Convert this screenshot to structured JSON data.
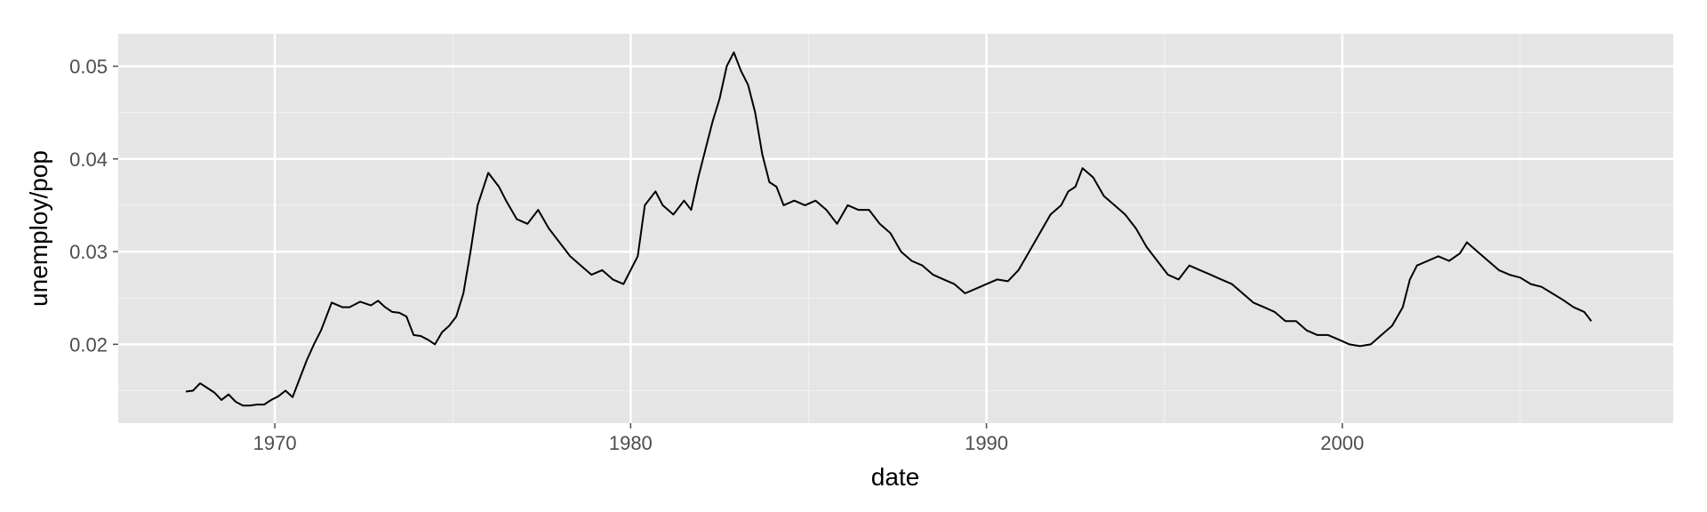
{
  "chart_data": {
    "type": "line",
    "title": "",
    "xlabel": "date",
    "ylabel": "unemploy/pop",
    "xlim": [
      1965.6,
      2009.3
    ],
    "ylim": [
      0.0115,
      0.0535
    ],
    "x_ticks": [
      1970,
      1980,
      1990,
      2000
    ],
    "x_tick_labels": [
      "1970",
      "1980",
      "1990",
      "2000"
    ],
    "y_ticks": [
      0.02,
      0.03,
      0.04,
      0.05
    ],
    "y_tick_labels": [
      "0.02",
      "0.03",
      "0.04",
      "0.05"
    ],
    "grid": true,
    "legend": "none",
    "colors": {
      "panel": "#e5e5e5",
      "grid_major": "#ffffff",
      "grid_minor": "#f2f2f2",
      "line": "#000000",
      "tick": "#4d4d4d"
    },
    "series": [
      {
        "x": [
          1967.5,
          1967.7,
          1967.9,
          1968.1,
          1968.3,
          1968.5,
          1968.7,
          1968.9,
          1969.1,
          1969.3,
          1969.5,
          1969.7,
          1969.9,
          1970.1,
          1970.3,
          1970.5,
          1970.7,
          1970.9,
          1971.1,
          1971.3,
          1971.6,
          1971.9,
          1972.1,
          1972.4,
          1972.7,
          1972.9,
          1973.1,
          1973.3,
          1973.5,
          1973.7,
          1973.9,
          1974.1,
          1974.3,
          1974.5,
          1974.7,
          1974.9,
          1975.1,
          1975.3,
          1975.5,
          1975.7,
          1976.0,
          1976.3,
          1976.5,
          1976.8,
          1977.1,
          1977.4,
          1977.7,
          1978.0,
          1978.3,
          1978.6,
          1978.9,
          1979.2,
          1979.5,
          1979.8,
          1980.0,
          1980.2,
          1980.4,
          1980.7,
          1980.9,
          1981.2,
          1981.5,
          1981.7,
          1981.9,
          1982.1,
          1982.3,
          1982.5,
          1982.7,
          1982.9,
          1983.1,
          1983.3,
          1983.5,
          1983.7,
          1983.9,
          1984.1,
          1984.3,
          1984.6,
          1984.9,
          1985.2,
          1985.5,
          1985.8,
          1986.1,
          1986.4,
          1986.7,
          1987.0,
          1987.3,
          1987.6,
          1987.9,
          1988.2,
          1988.5,
          1988.8,
          1989.1,
          1989.4,
          1989.7,
          1990.0,
          1990.3,
          1990.6,
          1990.9,
          1991.2,
          1991.5,
          1991.8,
          1992.1,
          1992.3,
          1992.5,
          1992.7,
          1993.0,
          1993.3,
          1993.6,
          1993.9,
          1994.2,
          1994.5,
          1994.8,
          1995.1,
          1995.4,
          1995.7,
          1996.0,
          1996.3,
          1996.6,
          1996.9,
          1997.2,
          1997.5,
          1997.8,
          1998.1,
          1998.4,
          1998.7,
          1999.0,
          1999.3,
          1999.6,
          1999.9,
          2000.2,
          2000.5,
          2000.8,
          2001.1,
          2001.4,
          2001.7,
          2001.9,
          2002.1,
          2002.4,
          2002.7,
          2003.0,
          2003.3,
          2003.5,
          2003.8,
          2004.1,
          2004.4,
          2004.7,
          2005.0,
          2005.3,
          2005.6,
          2005.9,
          2006.2,
          2006.5,
          2006.8,
          2007.0
        ],
        "y": [
          0.0149,
          0.015,
          0.0158,
          0.0153,
          0.0148,
          0.014,
          0.0146,
          0.0138,
          0.0134,
          0.0134,
          0.0135,
          0.0135,
          0.014,
          0.0144,
          0.015,
          0.0143,
          0.0163,
          0.0183,
          0.02,
          0.0215,
          0.0245,
          0.024,
          0.024,
          0.0246,
          0.0242,
          0.0247,
          0.024,
          0.0235,
          0.0234,
          0.023,
          0.021,
          0.0209,
          0.0205,
          0.02,
          0.0213,
          0.022,
          0.023,
          0.0255,
          0.03,
          0.035,
          0.0385,
          0.037,
          0.0355,
          0.0335,
          0.033,
          0.0345,
          0.0325,
          0.031,
          0.0295,
          0.0285,
          0.0275,
          0.028,
          0.027,
          0.0265,
          0.028,
          0.0295,
          0.035,
          0.0365,
          0.035,
          0.034,
          0.0355,
          0.0345,
          0.038,
          0.041,
          0.044,
          0.0465,
          0.05,
          0.0515,
          0.0495,
          0.048,
          0.045,
          0.0405,
          0.0375,
          0.037,
          0.035,
          0.0355,
          0.035,
          0.0355,
          0.0345,
          0.033,
          0.035,
          0.0345,
          0.0345,
          0.033,
          0.032,
          0.03,
          0.029,
          0.0285,
          0.0275,
          0.027,
          0.0265,
          0.0255,
          0.026,
          0.0265,
          0.027,
          0.0268,
          0.028,
          0.03,
          0.032,
          0.034,
          0.035,
          0.0365,
          0.037,
          0.039,
          0.038,
          0.036,
          0.035,
          0.034,
          0.0325,
          0.0305,
          0.029,
          0.0275,
          0.027,
          0.0285,
          0.028,
          0.0275,
          0.027,
          0.0265,
          0.0255,
          0.0245,
          0.024,
          0.0235,
          0.0225,
          0.0225,
          0.0215,
          0.021,
          0.021,
          0.0205,
          0.02,
          0.0198,
          0.02,
          0.021,
          0.022,
          0.024,
          0.027,
          0.0285,
          0.029,
          0.0295,
          0.029,
          0.0298,
          0.031,
          0.03,
          0.029,
          0.028,
          0.0275,
          0.0272,
          0.0265,
          0.0262,
          0.0255,
          0.0248,
          0.024,
          0.0235,
          0.0225
        ]
      }
    ]
  }
}
